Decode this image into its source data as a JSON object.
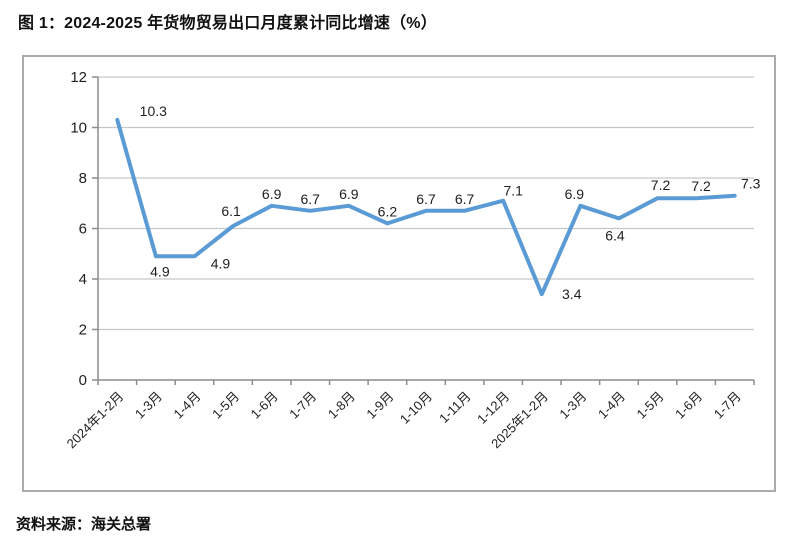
{
  "title": "图 1：2024-2025 年货物贸易出口月度累计同比增速（%）",
  "source": "资料来源：海关总署",
  "chart_data": {
    "type": "line",
    "categories": [
      "2024年1-2月",
      "1-3月",
      "1-4月",
      "1-5月",
      "1-6月",
      "1-7月",
      "1-8月",
      "1-9月",
      "1-10月",
      "1-11月",
      "1-12月",
      "2025年1-2月",
      "1-3月",
      "1-4月",
      "1-5月",
      "1-6月",
      "1-7月"
    ],
    "values": [
      10.3,
      4.9,
      4.9,
      6.1,
      6.9,
      6.7,
      6.9,
      6.2,
      6.7,
      6.7,
      7.1,
      3.4,
      6.9,
      6.4,
      7.2,
      7.2,
      7.3
    ],
    "title": "",
    "xlabel": "",
    "ylabel": "",
    "ylim": [
      0,
      12
    ],
    "ytick_step": 2,
    "yticks": [
      0,
      2,
      4,
      6,
      8,
      10,
      12
    ],
    "grid": "horizontal",
    "legend": "none",
    "data_labels": true,
    "colors": {
      "line": "#5B9BD5",
      "data_label": "#1F1F1F",
      "axis": "#8C8C8C",
      "gridline": "#C6C6C6",
      "tick_label": "#1F1F1F"
    }
  }
}
